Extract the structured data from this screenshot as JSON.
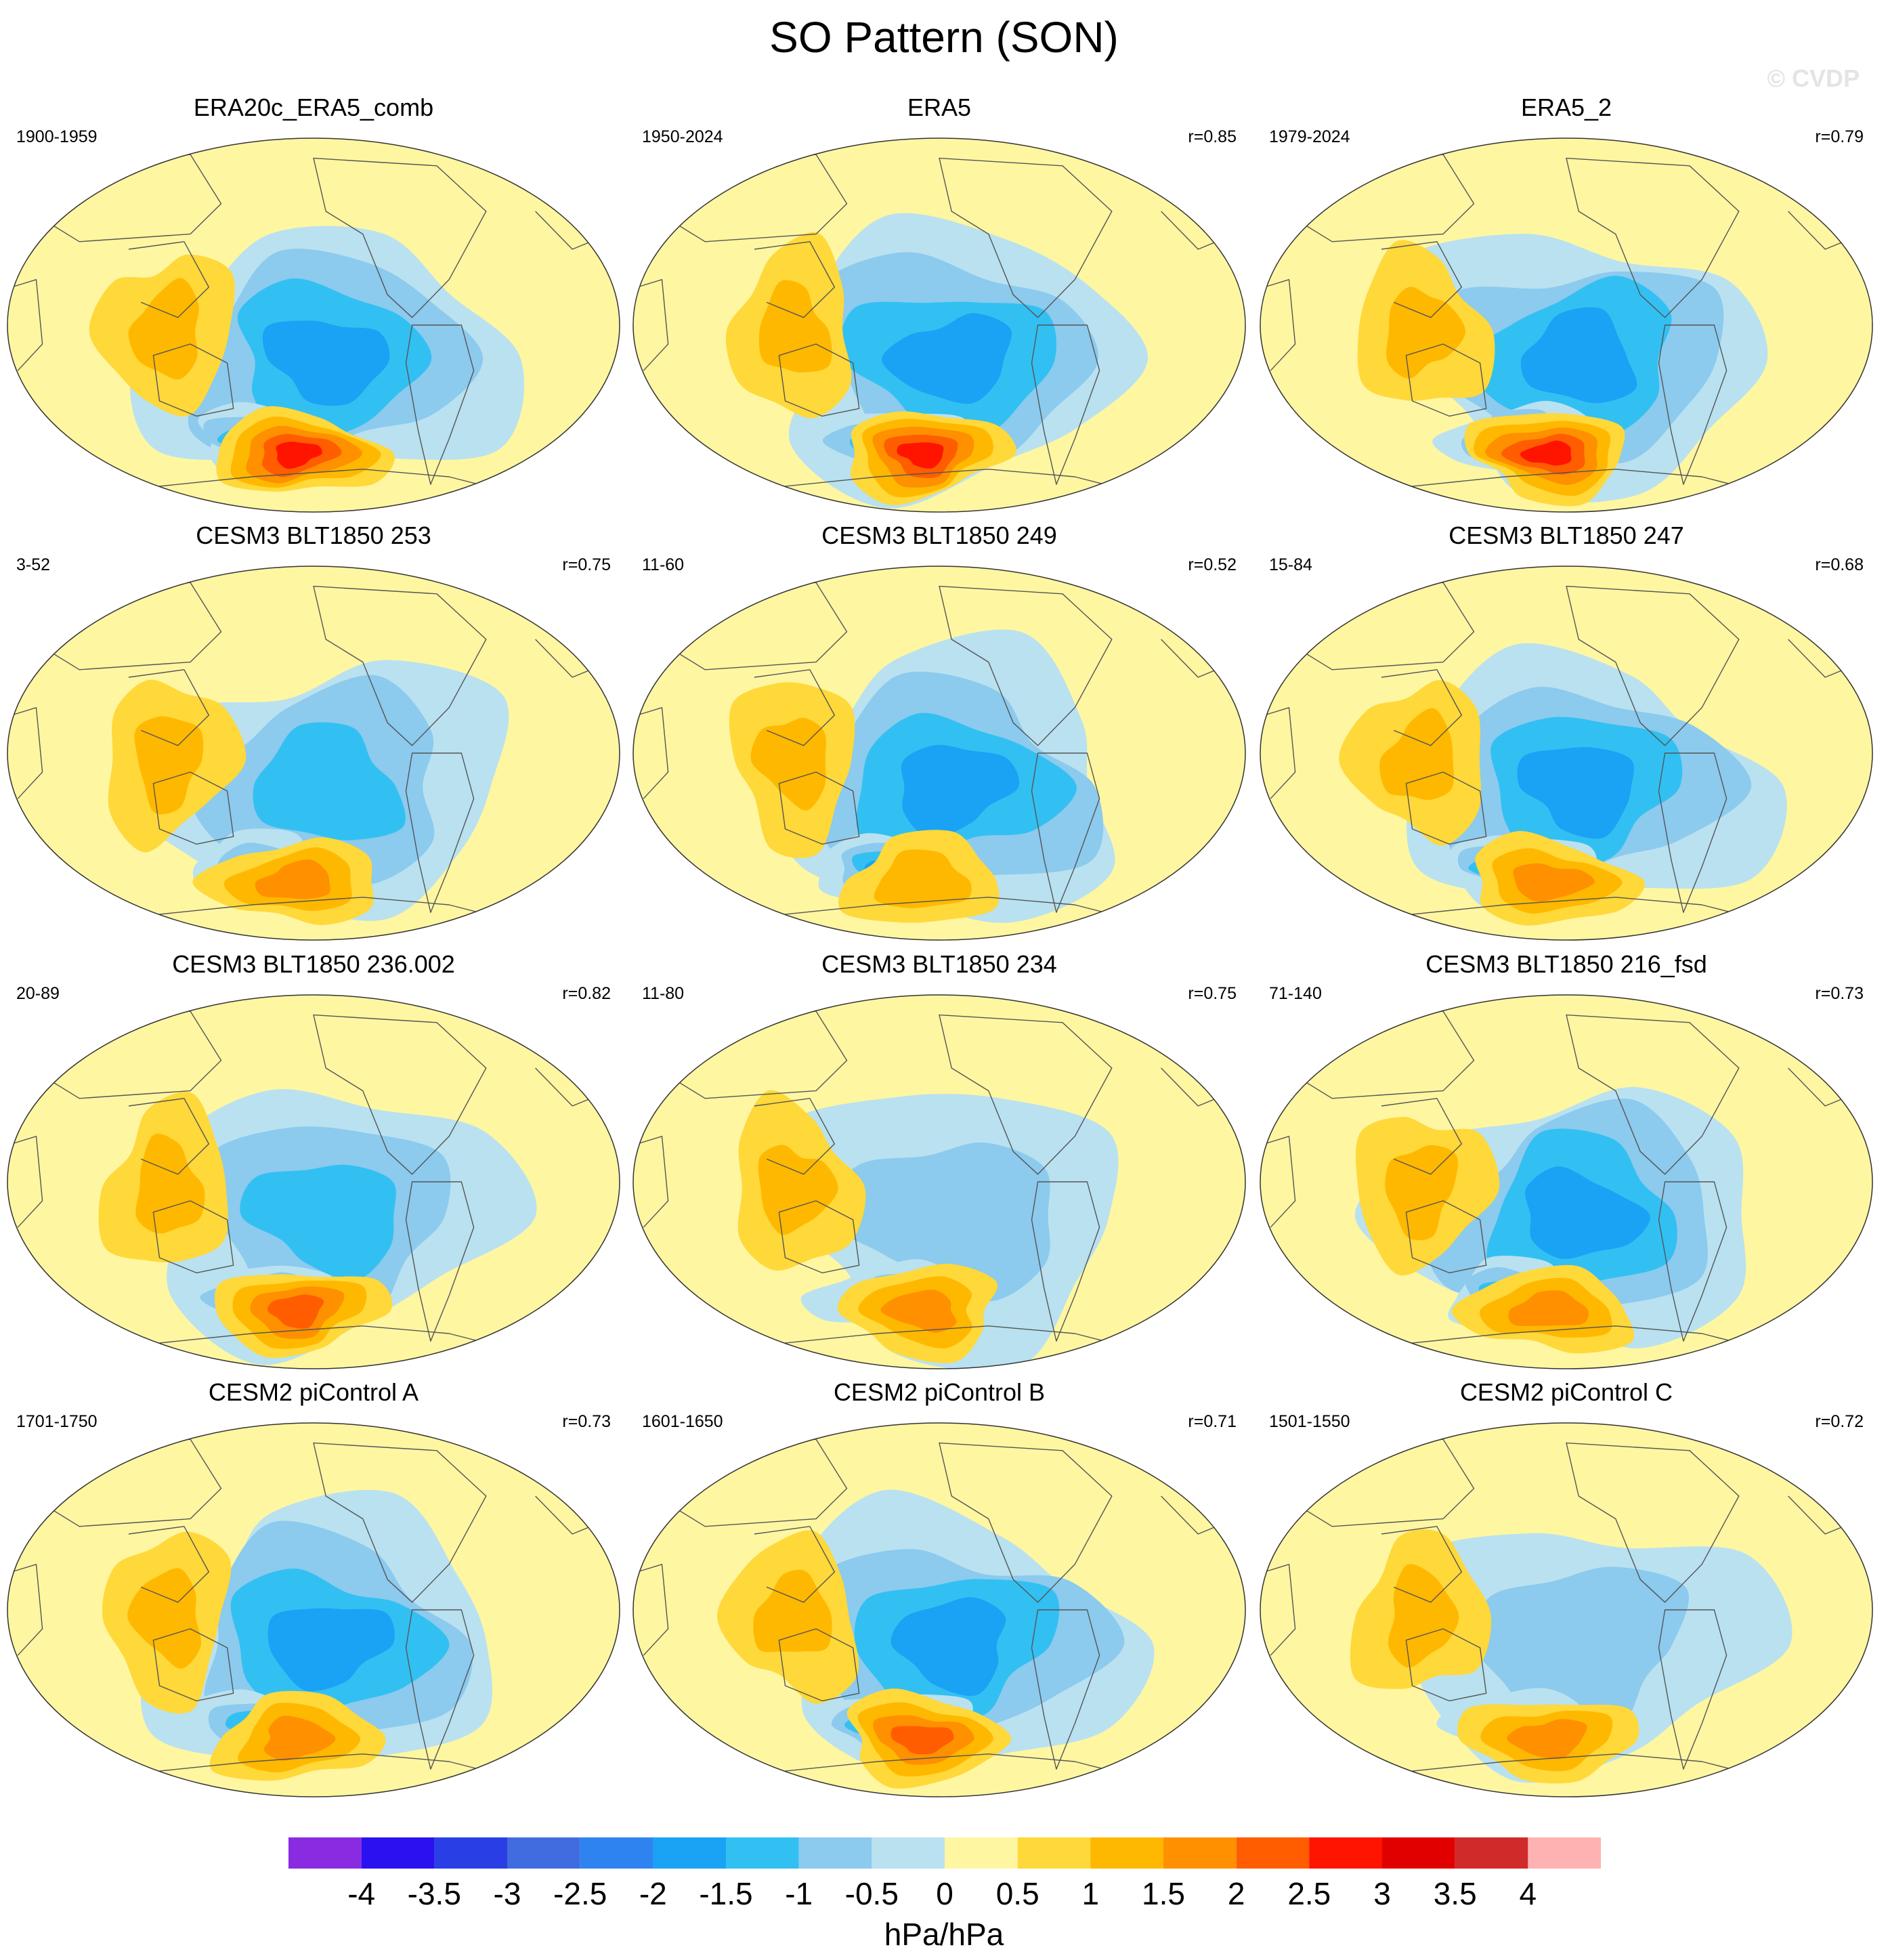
{
  "figure": {
    "title": "SO Pattern (SON)",
    "watermark": "© CVDP"
  },
  "chart_data": {
    "type": "contour-map",
    "title": "SO Pattern (SON)",
    "units": "hPa/hPa",
    "projection": "Robinson (Pacific-centered)",
    "colorbar": {
      "ticks": [
        "-4",
        "-3.5",
        "-3",
        "-2.5",
        "-2",
        "-1.5",
        "-1",
        "-0.5",
        "0",
        "0.5",
        "1",
        "1.5",
        "2",
        "2.5",
        "3",
        "3.5",
        "4"
      ],
      "colors": [
        "#8a2be2",
        "#2b10f0",
        "#2a3ee6",
        "#3f6cde",
        "#2f83f0",
        "#1aa2f5",
        "#32c0f2",
        "#8ccaee",
        "#b9e1f0",
        "#fff6a2",
        "#ffd83a",
        "#ffb800",
        "#ff9000",
        "#ff5d00",
        "#ff1400",
        "#e00000",
        "#d02a2a",
        "#ffb2b2"
      ]
    },
    "panels": [
      {
        "title": "ERA20c_ERA5_comb",
        "period": "1900-1959",
        "r": "",
        "max_anom": 3.2,
        "min_anom": -2.0
      },
      {
        "title": "ERA5",
        "period": "1950-2024",
        "r": "r=0.85",
        "max_anom": 3.2,
        "min_anom": -2.0
      },
      {
        "title": "ERA5_2",
        "period": "1979-2024",
        "r": "r=0.79",
        "max_anom": 3.2,
        "min_anom": -2.0
      },
      {
        "title": "CESM3 BLT1850 253",
        "period": "3-52",
        "r": "r=0.75",
        "max_anom": 1.8,
        "min_anom": -1.5
      },
      {
        "title": "CESM3 BLT1850 249",
        "period": "11-60",
        "r": "r=0.52",
        "max_anom": 1.3,
        "min_anom": -1.8
      },
      {
        "title": "CESM3 BLT1850 247",
        "period": "15-84",
        "r": "r=0.68",
        "max_anom": 2.1,
        "min_anom": -1.8
      },
      {
        "title": "CESM3 BLT1850 236.002",
        "period": "20-89",
        "r": "r=0.82",
        "max_anom": 2.3,
        "min_anom": -1.4
      },
      {
        "title": "CESM3 BLT1850 234",
        "period": "11-80",
        "r": "r=0.75",
        "max_anom": 2.0,
        "min_anom": -0.9
      },
      {
        "title": "CESM3 BLT1850 216_fsd",
        "period": "71-140",
        "r": "r=0.73",
        "max_anom": 2.0,
        "min_anom": -1.8
      },
      {
        "title": "CESM2 piControl A",
        "period": "1701-1750",
        "r": "r=0.73",
        "max_anom": 2.2,
        "min_anom": -1.8
      },
      {
        "title": "CESM2 piControl B",
        "period": "1601-1650",
        "r": "r=0.71",
        "max_anom": 2.6,
        "min_anom": -1.8
      },
      {
        "title": "CESM2 piControl C",
        "period": "1501-1550",
        "r": "r=0.72",
        "max_anom": 2.2,
        "min_anom": -1.2
      }
    ]
  }
}
